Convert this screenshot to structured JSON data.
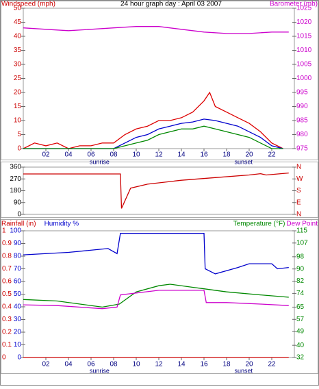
{
  "chart_data": [
    {
      "type": "line",
      "title": "24 hour graph day : April 03 2007",
      "labels": [
        {
          "text": "Windspeed (mph)",
          "color": "#cc0000",
          "side": "left"
        },
        {
          "text": "Barometer (mb)",
          "color": "#cc00cc",
          "side": "right"
        }
      ],
      "xlim": [
        0,
        24
      ],
      "xticks": [
        {
          "value": 2,
          "label": "02"
        },
        {
          "value": 4,
          "label": "04"
        },
        {
          "value": 6,
          "label": "06"
        },
        {
          "value": 8,
          "label": "08"
        },
        {
          "value": 10,
          "label": "10"
        },
        {
          "value": 12,
          "label": "12"
        },
        {
          "value": 14,
          "label": "14"
        },
        {
          "value": 16,
          "label": "16"
        },
        {
          "value": 18,
          "label": "18"
        },
        {
          "value": 20,
          "label": "20"
        },
        {
          "value": 22,
          "label": "22"
        }
      ],
      "annotations": [
        {
          "x": 6.75,
          "text": "sunrise"
        },
        {
          "x": 19.5,
          "text": "sunset"
        }
      ],
      "ylim": [
        0,
        50
      ],
      "yticks": [
        0,
        5,
        10,
        15,
        20,
        25,
        30,
        35,
        40,
        45,
        50
      ],
      "y_color": "#cc0000",
      "y2lim": [
        975,
        1025
      ],
      "y2ticks": [
        975,
        980,
        985,
        990,
        995,
        1000,
        1005,
        1010,
        1015,
        1020,
        1025
      ],
      "y2_color": "#cc00cc",
      "series": [
        {
          "color": "#cc00cc",
          "axis": "y2",
          "x": [
            0,
            2,
            4,
            6,
            8,
            10,
            12,
            14,
            16,
            18,
            20,
            22,
            23.5
          ],
          "values": [
            1018,
            1017.5,
            1017,
            1017.5,
            1018,
            1018.5,
            1018.5,
            1017.5,
            1016.5,
            1016,
            1016,
            1016.5,
            1016.5
          ]
        },
        {
          "color": "#dd0000",
          "x": [
            0,
            1,
            2,
            3,
            4,
            5,
            6,
            7,
            8,
            9,
            10,
            11,
            12,
            13,
            14,
            15,
            16,
            16.5,
            17,
            18,
            19,
            20,
            21,
            22,
            23
          ],
          "values": [
            0,
            2,
            1,
            2,
            0,
            1,
            1,
            2,
            2,
            5,
            7,
            8,
            10,
            10,
            11,
            13,
            17,
            20,
            15,
            13,
            11,
            9,
            6,
            2,
            0
          ]
        },
        {
          "color": "#0000cc",
          "x": [
            0,
            8,
            9,
            10,
            11,
            12,
            13,
            14,
            15,
            16,
            17,
            18,
            19,
            20,
            21,
            22,
            23
          ],
          "values": [
            0,
            0,
            2,
            4,
            5,
            7,
            8,
            9,
            9.5,
            10.5,
            10,
            9,
            8,
            6,
            4,
            1,
            0
          ]
        },
        {
          "color": "#008800",
          "x": [
            0,
            8,
            9,
            10,
            11,
            12,
            13,
            14,
            15,
            16,
            17,
            18,
            19,
            20,
            21,
            22,
            23
          ],
          "values": [
            0,
            0,
            1,
            2,
            3,
            5,
            6,
            7,
            7,
            8,
            7,
            6,
            5,
            4,
            2,
            0,
            0
          ]
        }
      ]
    },
    {
      "type": "line",
      "xlim": [
        0,
        24
      ],
      "ylim": [
        0,
        360
      ],
      "yticks": [
        0,
        90,
        180,
        270,
        360
      ],
      "y_color": "#000000",
      "y2lim": [
        0,
        360
      ],
      "y2ticks": [
        {
          "value": 0,
          "label": "N"
        },
        {
          "value": 90,
          "label": "E"
        },
        {
          "value": 180,
          "label": "S"
        },
        {
          "value": 270,
          "label": "W"
        },
        {
          "value": 360,
          "label": "N"
        }
      ],
      "y2_color": "#cc0000",
      "series": [
        {
          "color": "#cc0000",
          "x": [
            0,
            8.6,
            8.7,
            9.5,
            11,
            14,
            17,
            20,
            21,
            21.5,
            23.5
          ],
          "values": [
            308,
            308,
            45,
            200,
            230,
            260,
            280,
            300,
            310,
            300,
            315
          ]
        }
      ]
    },
    {
      "type": "line",
      "labels": [
        {
          "text": "Rainfall (in)",
          "color": "#cc0000",
          "side": "left"
        },
        {
          "text": "Humidity %",
          "color": "#0000cc",
          "side": "left"
        },
        {
          "text": "Dew Point",
          "color": "#cc00cc",
          "side": "right"
        },
        {
          "text": "Temperature (°F)",
          "color": "#008800",
          "side": "right"
        }
      ],
      "xlim": [
        0,
        24
      ],
      "xticks": [
        {
          "value": 2,
          "label": "02"
        },
        {
          "value": 4,
          "label": "04"
        },
        {
          "value": 6,
          "label": "06"
        },
        {
          "value": 8,
          "label": "08"
        },
        {
          "value": 10,
          "label": "10"
        },
        {
          "value": 12,
          "label": "12"
        },
        {
          "value": 14,
          "label": "14"
        },
        {
          "value": 16,
          "label": "16"
        },
        {
          "value": 18,
          "label": "18"
        },
        {
          "value": 20,
          "label": "20"
        },
        {
          "value": 22,
          "label": "22"
        }
      ],
      "annotations": [
        {
          "x": 6.75,
          "text": "sunrise"
        },
        {
          "x": 19.5,
          "text": "sunset"
        }
      ],
      "ylim": [
        0,
        100
      ],
      "yticks": [
        0,
        10,
        20,
        30,
        40,
        50,
        60,
        70,
        80,
        90,
        100
      ],
      "y_color": "#0000cc",
      "y3lim": [
        0,
        1
      ],
      "y3ticks": [
        0,
        0.1,
        0.2,
        0.3,
        0.4,
        0.5,
        0.6,
        0.7,
        0.8,
        0.9,
        1
      ],
      "y3_color": "#cc0000",
      "y2lim": [
        32,
        115
      ],
      "y2ticks": [
        32,
        40,
        49,
        57,
        65,
        74,
        82,
        90,
        98,
        107,
        115
      ],
      "y2_color": "#008800",
      "series": [
        {
          "color": "#0000cc",
          "x": [
            0,
            4,
            7.5,
            8.3,
            8.6,
            16,
            16.1,
            17,
            19,
            20,
            22,
            22.5,
            23.5
          ],
          "values": [
            81,
            83,
            86,
            82,
            98,
            98,
            70,
            66,
            71,
            74,
            74,
            70,
            71
          ]
        },
        {
          "color": "#008800",
          "axis": "y2",
          "x": [
            0,
            3,
            7,
            8.5,
            10,
            12,
            13,
            15,
            16,
            18,
            21,
            23.5
          ],
          "values": [
            70,
            69,
            65,
            67,
            75,
            79,
            80,
            78,
            77,
            75,
            73,
            71.5
          ]
        },
        {
          "color": "#cc00cc",
          "axis": "y2",
          "x": [
            0,
            3,
            7,
            8.3,
            8.6,
            12,
            16,
            16.2,
            18,
            21,
            23.5
          ],
          "values": [
            66.5,
            66,
            64,
            65,
            73,
            76,
            76,
            68,
            68,
            67,
            66
          ]
        },
        {
          "color": "#cc0000",
          "axis": "y3",
          "x": [
            0,
            23.5
          ],
          "values": [
            0,
            0
          ]
        }
      ]
    }
  ]
}
